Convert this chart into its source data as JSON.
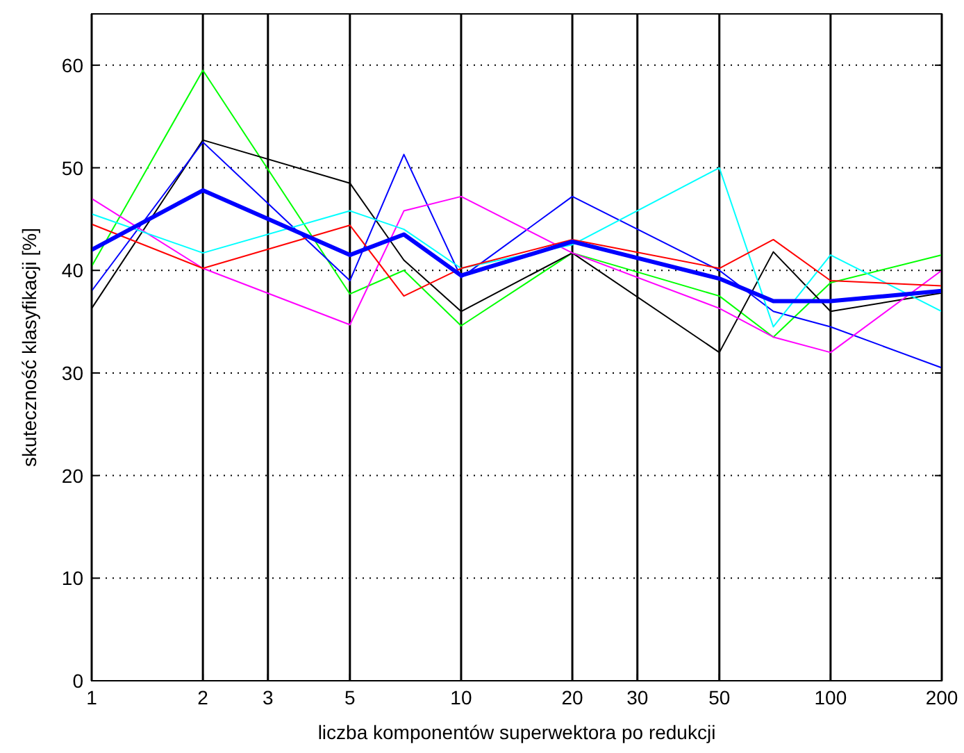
{
  "chart_data": {
    "type": "line",
    "xlabel": "liczba komponentów superwektora po redukcji",
    "ylabel": "skuteczność klasyfikacji [%]",
    "log": "x",
    "grid": true,
    "marker": "none",
    "line_style": "solid",
    "xlim": [
      1,
      200
    ],
    "xticks": [
      1,
      2,
      3,
      5,
      10,
      20,
      30,
      50,
      100,
      200
    ],
    "ylim": [
      0,
      65
    ],
    "yticks": [
      0,
      10,
      20,
      30,
      40,
      50,
      60
    ],
    "x": [
      1,
      2,
      5,
      7,
      10,
      20,
      50,
      70,
      100,
      200
    ],
    "series": [
      {
        "color": "#00ff00",
        "values": [
          40.4,
          59.5,
          37.7,
          40,
          34.6,
          41.7,
          37.5,
          33.5,
          38.8,
          41.5
        ]
      },
      {
        "color": "#000000",
        "values": [
          36.3,
          52.7,
          48.5,
          41,
          36,
          41.7,
          32,
          41.8,
          36,
          37.8
        ]
      },
      {
        "color": "#0000ff",
        "values": [
          38,
          52.5,
          39,
          51.3,
          39.3,
          47.2,
          40,
          36,
          34.5,
          30.5
        ]
      },
      {
        "color": "#ff00ff",
        "values": [
          47,
          40.2,
          34.7,
          45.8,
          47.2,
          41.7,
          36.3,
          33.5,
          32,
          40
        ]
      },
      {
        "color": "#00ffff",
        "values": [
          45.5,
          41.7,
          45.8,
          44,
          40.2,
          42.5,
          50,
          34.5,
          41.5,
          36
        ]
      },
      {
        "color": "#ff0000",
        "values": [
          44.5,
          40.2,
          44.4,
          37.5,
          40.2,
          43,
          40.2,
          43,
          39,
          38.5
        ]
      },
      {
        "color": "#0000ff",
        "values": [
          42,
          47.8,
          41.5,
          43.5,
          39.5,
          42.8,
          39.2,
          37,
          37,
          38
        ]
      }
    ]
  }
}
